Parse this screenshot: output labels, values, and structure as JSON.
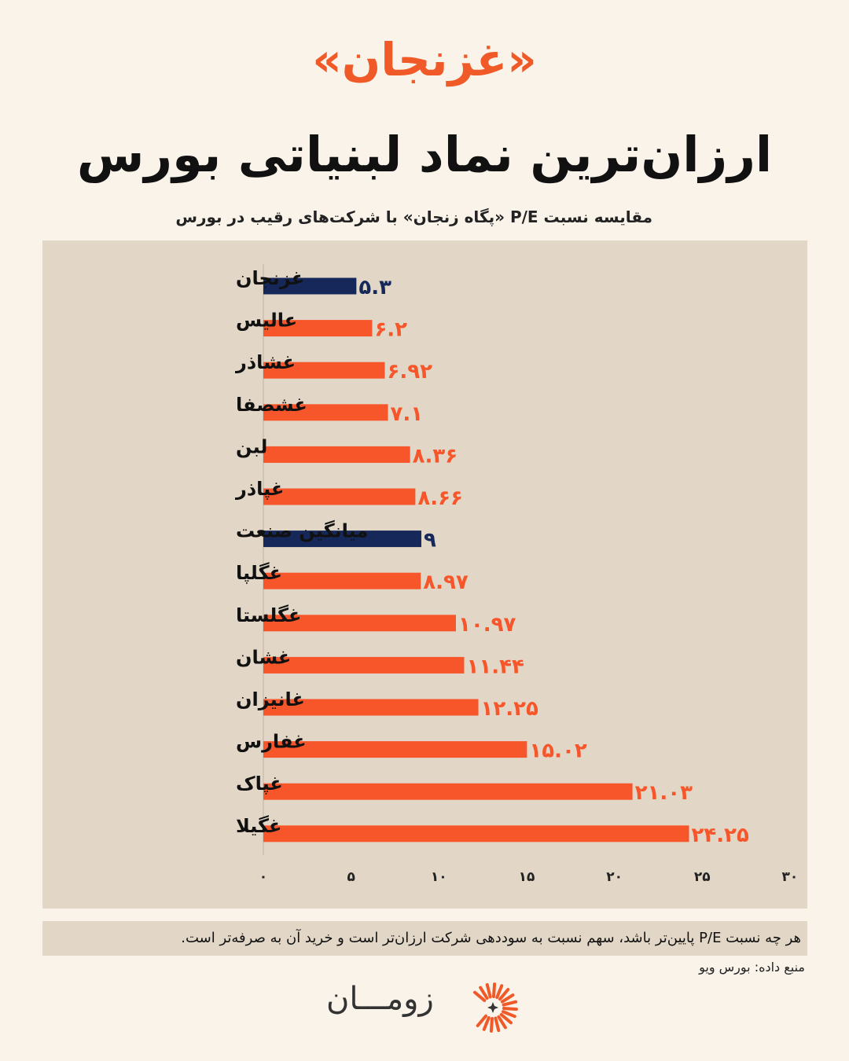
{
  "kicker": "«غزنجان»",
  "title": "ارزان‌ترین نماد لبنیاتی بورس",
  "subtitle": "مقایسه نسبت P/E «پگاه زنجان» با شرکت‌های رقیب در بورس",
  "note": "هر چه نسبت P/E پایین‌تر باشد، سهم نسبت به سوددهی شرکت ارزان‌تر است و خرید آن به صرفه‌تر است.",
  "source": "منبع داده: بورس ویو",
  "logo": {
    "text": "زومـــان",
    "icon": "sunburst-logo-icon"
  },
  "colors": {
    "highlight": "#16285a",
    "bar": "#f7562b",
    "panel": "#e2d7c6",
    "accent": "#f05a28"
  },
  "chart_data": {
    "type": "bar",
    "orientation": "horizontal",
    "categories": [
      "غزنجان",
      "عالیس",
      "غشاذر",
      "غشصفا",
      "لبن",
      "غپاذر",
      "میانگین صنعت",
      "غگلپا",
      "غگلستا",
      "غشان",
      "غانیزان",
      "غفارس",
      "غپاک",
      "غگیلا"
    ],
    "values": [
      5.3,
      6.2,
      6.92,
      7.1,
      8.36,
      8.66,
      9,
      8.97,
      10.97,
      11.44,
      12.25,
      15.02,
      21.03,
      24.25
    ],
    "value_labels": [
      "۵.۳",
      "۶.۲",
      "۶.۹۲",
      "۷.۱",
      "۸.۳۶",
      "۸.۶۶",
      "۹",
      "۸.۹۷",
      "۱۰.۹۷",
      "۱۱.۴۴",
      "۱۲.۲۵",
      "۱۵.۰۲",
      "۲۱.۰۳",
      "۲۴.۲۵"
    ],
    "highlighted": [
      "غزنجان",
      "میانگین صنعت"
    ],
    "xlim": [
      0,
      30
    ],
    "xticks": [
      0,
      5,
      10,
      15,
      20,
      25,
      30
    ],
    "xtick_labels": [
      "۰",
      "۵",
      "۱۰",
      "۱۵",
      "۲۰",
      "۲۵",
      "۳۰"
    ],
    "grid": false,
    "legend": "none"
  }
}
